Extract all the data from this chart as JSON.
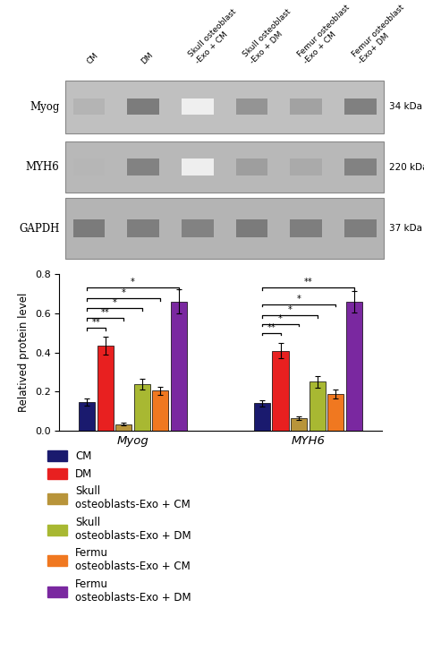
{
  "groups": [
    "Myog",
    "MYH6"
  ],
  "bar_colors": [
    "#1a1a6e",
    "#e82020",
    "#b8943a",
    "#a8b832",
    "#f07820",
    "#7a28a0"
  ],
  "values": {
    "Myog": [
      0.148,
      0.435,
      0.035,
      0.238,
      0.205,
      0.66
    ],
    "MYH6": [
      0.14,
      0.408,
      0.065,
      0.25,
      0.188,
      0.658
    ]
  },
  "errors": {
    "Myog": [
      0.018,
      0.045,
      0.008,
      0.028,
      0.02,
      0.06
    ],
    "MYH6": [
      0.015,
      0.038,
      0.01,
      0.03,
      0.022,
      0.055
    ]
  },
  "ylabel": "Relatived protein level",
  "ylim": [
    0.0,
    0.8
  ],
  "yticks": [
    0.0,
    0.2,
    0.4,
    0.6,
    0.8
  ],
  "legend_labels": [
    "CM",
    "DM",
    "Skull\nosteoblasts-Exo + CM",
    "Skull\nosteoblasts-Exo + DM",
    "Fermu\nosteoblasts-Exo + CM",
    "Fermu\nosteoblasts-Exo + DM"
  ],
  "wb_labels": [
    "Myog",
    "MYH6",
    "GAPDH"
  ],
  "wb_kda": [
    "34 kDa",
    "220 kDa",
    "37 kDa"
  ],
  "col_labels": [
    "CM",
    "DM",
    "Skull osteoblast\n-Exo + CM",
    "Skull osteoblast\n-Exo + DM",
    "Femur osteoblast\n-Exo + CM",
    "Femur osteoblast\n-Exo+ DM"
  ],
  "wb_bg_color": "#c8c8c8",
  "wb_row_colors": [
    "#b8b8b8",
    "#b0b0b0",
    "#a8a8a8"
  ],
  "myog_intensities": [
    0.4,
    0.72,
    0.05,
    0.58,
    0.5,
    0.7
  ],
  "myh6_intensities": [
    0.38,
    0.68,
    0.05,
    0.52,
    0.45,
    0.68
  ],
  "gapdh_intensities": [
    0.72,
    0.7,
    0.68,
    0.72,
    0.7,
    0.7
  ]
}
